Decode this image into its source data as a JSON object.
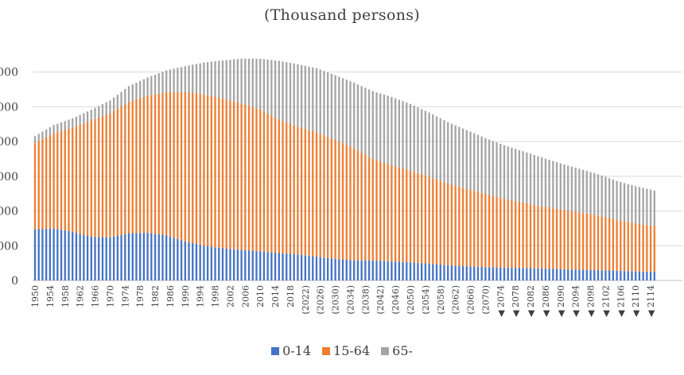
{
  "chart_data": {
    "type": "bar",
    "stacked": true,
    "subtitle": "(Thousand persons)",
    "ylim": [
      0,
      140000
    ],
    "y_ticks": [
      0,
      20000,
      40000,
      60000,
      80000,
      100000,
      120000
    ],
    "y_tick_labels": [
      "0",
      "000",
      "000",
      "000",
      "000",
      "000",
      "000"
    ],
    "grid": "horizontal",
    "legend_position": "bottom",
    "x_tick_labels": [
      "1950",
      "1954",
      "1958",
      "1962",
      "1966",
      "1970",
      "1974",
      "1978",
      "1982",
      "1986",
      "1990",
      "1994",
      "1998",
      "2002",
      "2006",
      "2010",
      "2014",
      "2018",
      "(2022)",
      "(2026)",
      "(2030)",
      "(2034)",
      "(2038)",
      "(2042)",
      "(2046)",
      "(2050)",
      "(2054)",
      "(2058)",
      "(2062)",
      "(2066)",
      "(2070)",
      "◀ 2074",
      "◀ 2078",
      "◀ 2082",
      "◀ 2086",
      "◀ 2090",
      "◀ 2094",
      "◀ 2098",
      "◀ 2102",
      "◀ 2106",
      "◀ 2110",
      "◀ 2114"
    ],
    "x": [
      1950,
      1951,
      1952,
      1953,
      1954,
      1955,
      1956,
      1957,
      1958,
      1959,
      1960,
      1961,
      1962,
      1963,
      1964,
      1965,
      1966,
      1967,
      1968,
      1969,
      1970,
      1971,
      1972,
      1973,
      1974,
      1975,
      1976,
      1977,
      1978,
      1979,
      1980,
      1981,
      1982,
      1983,
      1984,
      1985,
      1986,
      1987,
      1988,
      1989,
      1990,
      1991,
      1992,
      1993,
      1994,
      1995,
      1996,
      1997,
      1998,
      1999,
      2000,
      2001,
      2002,
      2003,
      2004,
      2005,
      2006,
      2007,
      2008,
      2009,
      2010,
      2011,
      2012,
      2013,
      2014,
      2015,
      2016,
      2017,
      2018,
      2019,
      2020,
      2021,
      2022,
      2023,
      2024,
      2025,
      2026,
      2027,
      2028,
      2029,
      2030,
      2031,
      2032,
      2033,
      2034,
      2035,
      2036,
      2037,
      2038,
      2039,
      2040,
      2041,
      2042,
      2043,
      2044,
      2045,
      2046,
      2047,
      2048,
      2049,
      2050,
      2051,
      2052,
      2053,
      2054,
      2055,
      2056,
      2057,
      2058,
      2059,
      2060,
      2061,
      2062,
      2063,
      2064,
      2065,
      2066,
      2067,
      2068,
      2069,
      2070,
      2071,
      2072,
      2073,
      2074,
      2075,
      2076,
      2077,
      2078,
      2079,
      2080,
      2081,
      2082,
      2083,
      2084,
      2085,
      2086,
      2087,
      2088,
      2089,
      2090,
      2091,
      2092,
      2093,
      2094,
      2095,
      2096,
      2097,
      2098,
      2099,
      2100,
      2101,
      2102,
      2103,
      2104,
      2105,
      2106,
      2107,
      2108,
      2109,
      2110,
      2111,
      2112,
      2113,
      2114,
      2115
    ],
    "series": [
      {
        "name": "0-14",
        "color": "#4472C4",
        "anchors": [
          [
            1950,
            29400
          ],
          [
            1955,
            30000
          ],
          [
            1960,
            28000
          ],
          [
            1965,
            25200
          ],
          [
            1970,
            24800
          ],
          [
            1975,
            27200
          ],
          [
            1980,
            27500
          ],
          [
            1985,
            26000
          ],
          [
            1990,
            22500
          ],
          [
            1995,
            20000
          ],
          [
            2000,
            18500
          ],
          [
            2005,
            17600
          ],
          [
            2010,
            16800
          ],
          [
            2015,
            15800
          ],
          [
            2020,
            15000
          ],
          [
            2025,
            13700
          ],
          [
            2030,
            12400
          ],
          [
            2035,
            11600
          ],
          [
            2040,
            11500
          ],
          [
            2045,
            11000
          ],
          [
            2050,
            10400
          ],
          [
            2055,
            9700
          ],
          [
            2060,
            8800
          ],
          [
            2065,
            8200
          ],
          [
            2070,
            7700
          ],
          [
            2075,
            7400
          ],
          [
            2080,
            7200
          ],
          [
            2085,
            6900
          ],
          [
            2090,
            6500
          ],
          [
            2095,
            6200
          ],
          [
            2100,
            5900
          ],
          [
            2105,
            5600
          ],
          [
            2110,
            5200
          ],
          [
            2115,
            5000
          ]
        ]
      },
      {
        "name": "15-64",
        "color": "#ED7D31",
        "anchors": [
          [
            1950,
            49700
          ],
          [
            1955,
            54700
          ],
          [
            1960,
            60000
          ],
          [
            1965,
            66900
          ],
          [
            1970,
            71500
          ],
          [
            1975,
            75800
          ],
          [
            1980,
            78800
          ],
          [
            1985,
            82500
          ],
          [
            1990,
            86000
          ],
          [
            1995,
            87200
          ],
          [
            2000,
            86200
          ],
          [
            2005,
            84400
          ],
          [
            2010,
            81700
          ],
          [
            2015,
            76800
          ],
          [
            2020,
            73500
          ],
          [
            2025,
            71700
          ],
          [
            2030,
            68600
          ],
          [
            2035,
            64500
          ],
          [
            2040,
            58300
          ],
          [
            2045,
            55300
          ],
          [
            2050,
            52900
          ],
          [
            2055,
            50000
          ],
          [
            2060,
            47000
          ],
          [
            2065,
            44600
          ],
          [
            2070,
            42100
          ],
          [
            2075,
            39500
          ],
          [
            2080,
            37600
          ],
          [
            2085,
            35800
          ],
          [
            2090,
            34300
          ],
          [
            2095,
            33100
          ],
          [
            2100,
            31500
          ],
          [
            2105,
            29300
          ],
          [
            2110,
            27500
          ],
          [
            2115,
            26400
          ]
        ]
      },
      {
        "name": "65-",
        "color": "#A5A5A5",
        "anchors": [
          [
            1950,
            4100
          ],
          [
            1955,
            4800
          ],
          [
            1960,
            5400
          ],
          [
            1965,
            6200
          ],
          [
            1970,
            7400
          ],
          [
            1975,
            8900
          ],
          [
            1980,
            10600
          ],
          [
            1985,
            12500
          ],
          [
            1990,
            14900
          ],
          [
            1995,
            18300
          ],
          [
            2000,
            22000
          ],
          [
            2005,
            25700
          ],
          [
            2010,
            29200
          ],
          [
            2015,
            33900
          ],
          [
            2020,
            36000
          ],
          [
            2025,
            36800
          ],
          [
            2030,
            37200
          ],
          [
            2035,
            37800
          ],
          [
            2040,
            39200
          ],
          [
            2045,
            39400
          ],
          [
            2050,
            38400
          ],
          [
            2055,
            37000
          ],
          [
            2060,
            35400
          ],
          [
            2065,
            33800
          ],
          [
            2070,
            32200
          ],
          [
            2075,
            31000
          ],
          [
            2080,
            29600
          ],
          [
            2085,
            28200
          ],
          [
            2090,
            26600
          ],
          [
            2095,
            25000
          ],
          [
            2100,
            23800
          ],
          [
            2105,
            22400
          ],
          [
            2110,
            21600
          ],
          [
            2115,
            20400
          ]
        ]
      }
    ]
  }
}
